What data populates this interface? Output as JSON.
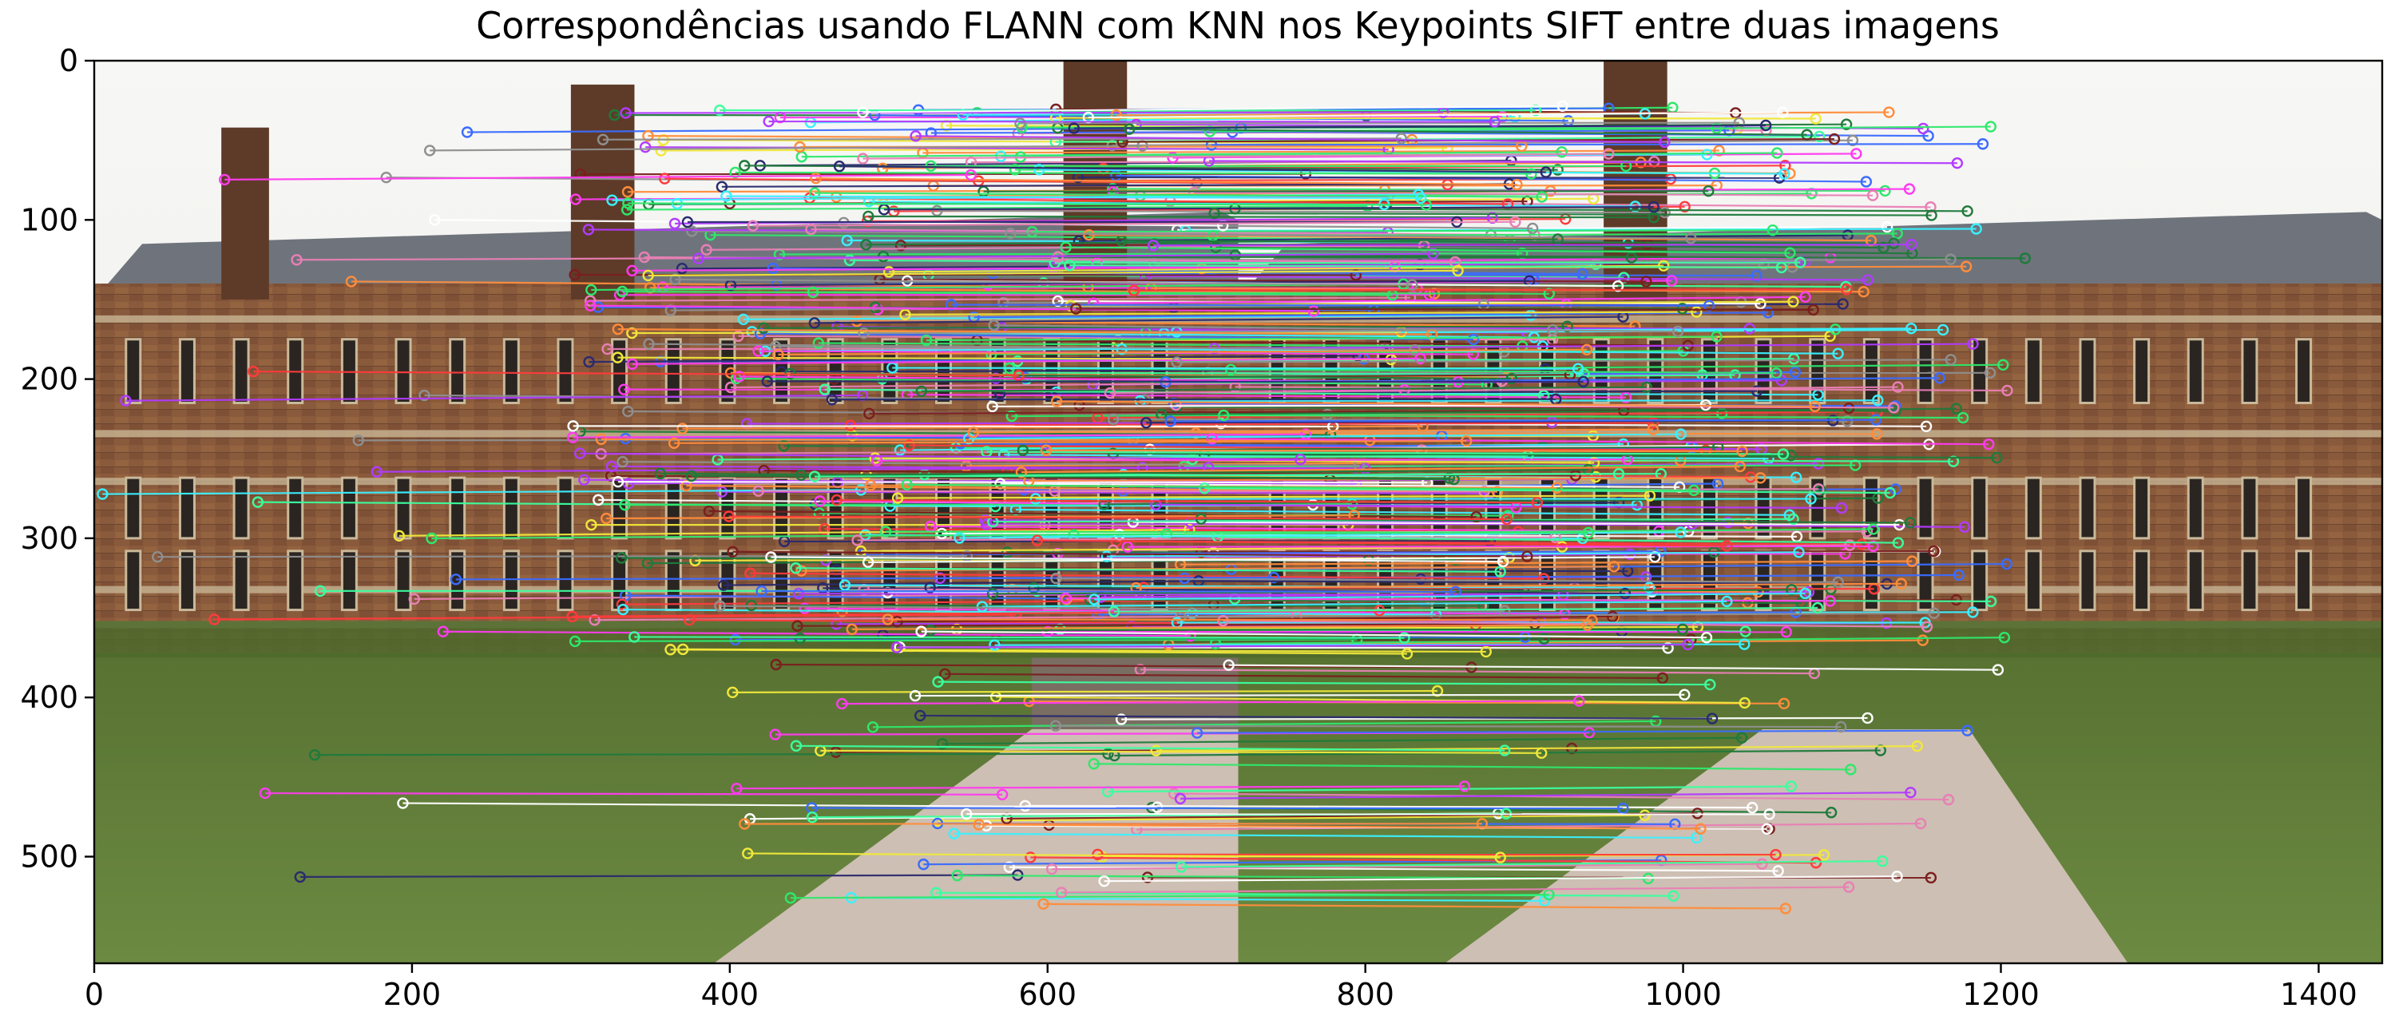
{
  "title": "Correspondências usando FLANN com KNN nos Keypoints SIFT entre duas imagens",
  "axes": {
    "x_ticks": [
      "0",
      "200",
      "400",
      "600",
      "800",
      "1000",
      "1200",
      "1400"
    ],
    "x_tick_values": [
      0,
      200,
      400,
      600,
      800,
      1000,
      1200,
      1400
    ],
    "y_ticks": [
      "0",
      "100",
      "200",
      "300",
      "400",
      "500"
    ],
    "y_tick_values": [
      0,
      100,
      200,
      300,
      400,
      500
    ],
    "x_range": [
      0,
      1440
    ],
    "y_range": [
      0,
      567
    ],
    "split_x": 720
  },
  "scene": {
    "subject": "brick college building with lawn and gravel path",
    "colors": {
      "sky": "#f3f3f1",
      "roof": "#6f747c",
      "brick": "#8a5a3c",
      "brick_dark": "#5e3b28",
      "stone": "#c9b99a",
      "lawn": "#5f7a38",
      "lawn_dark": "#4c6a2c",
      "path": "#cdbfb3",
      "window": "#2b2522"
    }
  },
  "match_colors": [
    "#ff3b3b",
    "#2ee86b",
    "#3b6bff",
    "#ff3bf0",
    "#3bf0ff",
    "#f0e83b",
    "#b23bff",
    "#ff8c3b",
    "#3bff9e",
    "#8f8f8f",
    "#7a1f1f",
    "#1f7a3b",
    "#ffffff",
    "#2a2a6e",
    "#e87fb5"
  ]
}
